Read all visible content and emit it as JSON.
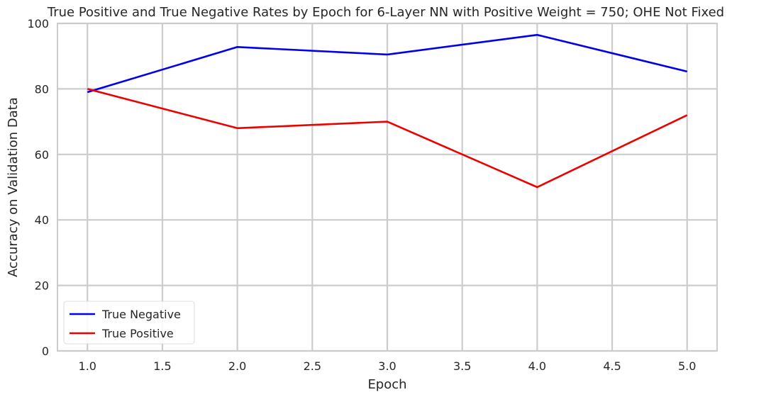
{
  "chart_data": {
    "type": "line",
    "title": "True Positive and True Negative Rates by Epoch for 6-Layer NN with Positive Weight = 750; OHE Not Fixed",
    "xlabel": "Epoch",
    "ylabel": "Accuracy on Validation Data",
    "xlim": [
      0.8,
      5.2
    ],
    "ylim": [
      0,
      100
    ],
    "xticks": [
      1.0,
      1.5,
      2.0,
      2.5,
      3.0,
      3.5,
      4.0,
      4.5,
      5.0
    ],
    "xtick_labels": [
      "1.0",
      "1.5",
      "2.0",
      "2.5",
      "3.0",
      "3.5",
      "4.0",
      "4.5",
      "5.0"
    ],
    "yticks": [
      0,
      20,
      40,
      60,
      80,
      100
    ],
    "ytick_labels": [
      "0",
      "20",
      "40",
      "60",
      "80",
      "100"
    ],
    "grid": true,
    "legend_position": "lower-left",
    "x": [
      1,
      2,
      3,
      4,
      5
    ],
    "series": [
      {
        "name": "True Negative",
        "color": "#0000ee",
        "values": [
          79.0,
          92.8,
          90.5,
          96.5,
          85.3
        ]
      },
      {
        "name": "True Positive",
        "color": "#ee0000",
        "values": [
          80.0,
          68.0,
          70.0,
          50.0,
          72.0
        ]
      }
    ]
  }
}
